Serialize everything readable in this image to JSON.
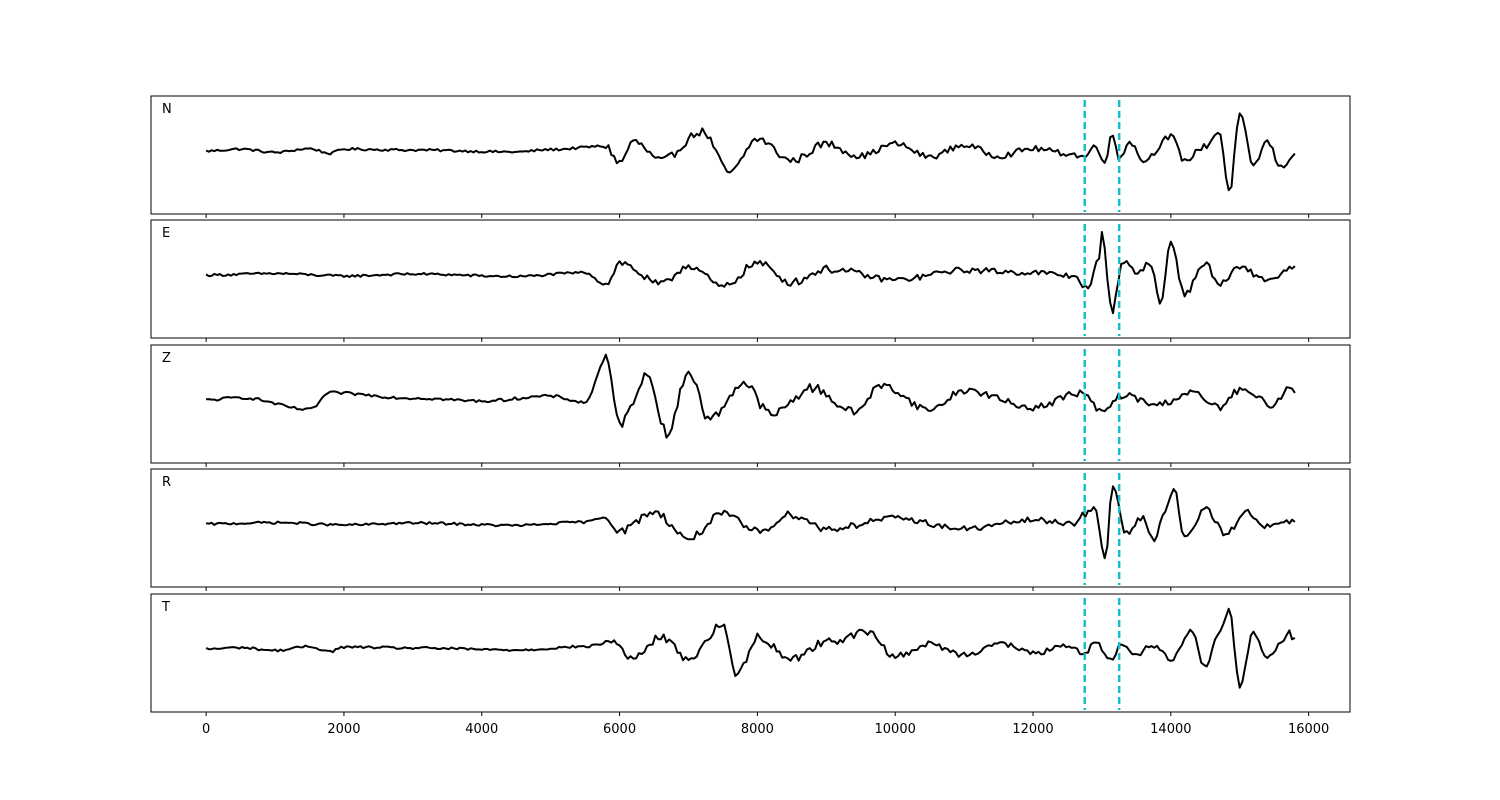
{
  "chart_data": {
    "type": "line",
    "xlim": [
      -800,
      16600
    ],
    "x_ticks": [
      0,
      2000,
      4000,
      6000,
      8000,
      10000,
      12000,
      14000,
      16000
    ],
    "x_tick_labels": [
      "0",
      "2000",
      "4000",
      "6000",
      "8000",
      "10000",
      "12000",
      "14000",
      "16000"
    ],
    "grid": false,
    "sample_step": 40,
    "x_start": 0,
    "x_end": 15800,
    "marker_color": "#17becf",
    "trace_color": "#000000",
    "markers_x": [
      12750,
      13250
    ],
    "series": [
      {
        "name": "N",
        "anchors": [
          [
            0,
            0.0
          ],
          [
            500,
            0.04
          ],
          [
            1000,
            -0.03
          ],
          [
            1500,
            0.05
          ],
          [
            1800,
            -0.05
          ],
          [
            2000,
            0.04
          ],
          [
            3000,
            0.02
          ],
          [
            4500,
            -0.02
          ],
          [
            5000,
            0.03
          ],
          [
            5800,
            0.1
          ],
          [
            6000,
            -0.25
          ],
          [
            6200,
            0.2
          ],
          [
            6600,
            -0.2
          ],
          [
            7200,
            0.4
          ],
          [
            7600,
            -0.45
          ],
          [
            8000,
            0.25
          ],
          [
            8500,
            -0.2
          ],
          [
            9000,
            0.15
          ],
          [
            9500,
            -0.1
          ],
          [
            10000,
            0.15
          ],
          [
            10500,
            -0.12
          ],
          [
            11000,
            0.12
          ],
          [
            11500,
            -0.1
          ],
          [
            12000,
            0.05
          ],
          [
            12500,
            -0.05
          ],
          [
            12750,
            -0.12
          ],
          [
            12900,
            0.1
          ],
          [
            13050,
            -0.2
          ],
          [
            13150,
            0.35
          ],
          [
            13250,
            -0.15
          ],
          [
            13400,
            0.2
          ],
          [
            13600,
            -0.2
          ],
          [
            14000,
            0.3
          ],
          [
            14200,
            -0.2
          ],
          [
            14500,
            0.1
          ],
          [
            14700,
            0.4
          ],
          [
            14850,
            -0.85
          ],
          [
            15000,
            0.75
          ],
          [
            15200,
            -0.3
          ],
          [
            15400,
            0.2
          ],
          [
            15600,
            -0.35
          ],
          [
            15800,
            -0.05
          ]
        ],
        "noise": 0.05
      },
      {
        "name": "E",
        "anchors": [
          [
            0,
            0.0
          ],
          [
            1000,
            0.03
          ],
          [
            2000,
            -0.02
          ],
          [
            3000,
            0.02
          ],
          [
            4500,
            -0.03
          ],
          [
            5500,
            0.05
          ],
          [
            5800,
            -0.2
          ],
          [
            6000,
            0.25
          ],
          [
            6600,
            -0.2
          ],
          [
            7000,
            0.2
          ],
          [
            7500,
            -0.25
          ],
          [
            8000,
            0.25
          ],
          [
            8500,
            -0.15
          ],
          [
            9000,
            0.12
          ],
          [
            10000,
            -0.1
          ],
          [
            11000,
            0.1
          ],
          [
            12000,
            0.05
          ],
          [
            12600,
            -0.02
          ],
          [
            12800,
            -0.3
          ],
          [
            12950,
            0.3
          ],
          [
            13000,
            0.85
          ],
          [
            13150,
            -0.75
          ],
          [
            13300,
            0.3
          ],
          [
            13500,
            0.05
          ],
          [
            13700,
            0.25
          ],
          [
            13850,
            -0.6
          ],
          [
            14000,
            0.7
          ],
          [
            14200,
            -0.4
          ],
          [
            14500,
            0.25
          ],
          [
            14700,
            -0.2
          ],
          [
            15000,
            0.15
          ],
          [
            15400,
            -0.1
          ],
          [
            15800,
            0.15
          ]
        ],
        "noise": 0.05
      },
      {
        "name": "Z",
        "anchors": [
          [
            0,
            0.0
          ],
          [
            500,
            0.05
          ],
          [
            1500,
            -0.2
          ],
          [
            1800,
            0.15
          ],
          [
            3000,
            0.04
          ],
          [
            4000,
            -0.02
          ],
          [
            5000,
            0.08
          ],
          [
            5500,
            -0.05
          ],
          [
            5800,
            0.85
          ],
          [
            6000,
            -0.5
          ],
          [
            6400,
            0.5
          ],
          [
            6700,
            -0.7
          ],
          [
            7000,
            0.6
          ],
          [
            7300,
            -0.4
          ],
          [
            7800,
            0.35
          ],
          [
            8200,
            -0.3
          ],
          [
            8800,
            0.25
          ],
          [
            9400,
            -0.25
          ],
          [
            9800,
            0.3
          ],
          [
            10500,
            -0.2
          ],
          [
            11000,
            0.2
          ],
          [
            12000,
            -0.15
          ],
          [
            12700,
            0.15
          ],
          [
            13000,
            -0.25
          ],
          [
            13300,
            0.1
          ],
          [
            13800,
            -0.1
          ],
          [
            14300,
            0.15
          ],
          [
            14700,
            -0.15
          ],
          [
            15000,
            0.2
          ],
          [
            15500,
            -0.1
          ],
          [
            15700,
            0.25
          ],
          [
            15800,
            0.2
          ]
        ],
        "noise": 0.06
      },
      {
        "name": "R",
        "anchors": [
          [
            0,
            0.0
          ],
          [
            1000,
            0.03
          ],
          [
            2000,
            -0.02
          ],
          [
            3000,
            0.02
          ],
          [
            4500,
            -0.03
          ],
          [
            5500,
            0.04
          ],
          [
            5800,
            0.15
          ],
          [
            6000,
            -0.15
          ],
          [
            6500,
            0.25
          ],
          [
            7000,
            -0.3
          ],
          [
            7500,
            0.2
          ],
          [
            8000,
            -0.15
          ],
          [
            8500,
            0.2
          ],
          [
            9000,
            -0.1
          ],
          [
            10000,
            0.12
          ],
          [
            11000,
            -0.1
          ],
          [
            12000,
            0.08
          ],
          [
            12600,
            0.02
          ],
          [
            12750,
            0.2
          ],
          [
            12900,
            0.3
          ],
          [
            13050,
            -0.75
          ],
          [
            13150,
            0.8
          ],
          [
            13350,
            -0.2
          ],
          [
            13600,
            0.15
          ],
          [
            13750,
            -0.35
          ],
          [
            13900,
            0.25
          ],
          [
            14050,
            0.7
          ],
          [
            14200,
            -0.3
          ],
          [
            14500,
            0.3
          ],
          [
            14800,
            -0.2
          ],
          [
            15100,
            0.25
          ],
          [
            15400,
            -0.05
          ],
          [
            15800,
            0.05
          ]
        ],
        "noise": 0.05
      },
      {
        "name": "T",
        "anchors": [
          [
            0,
            0.0
          ],
          [
            500,
            0.03
          ],
          [
            1000,
            -0.03
          ],
          [
            1500,
            0.05
          ],
          [
            1800,
            -0.05
          ],
          [
            2000,
            0.04
          ],
          [
            3000,
            0.02
          ],
          [
            4500,
            -0.02
          ],
          [
            5500,
            0.05
          ],
          [
            5900,
            0.15
          ],
          [
            6200,
            -0.2
          ],
          [
            6600,
            0.25
          ],
          [
            7000,
            -0.2
          ],
          [
            7500,
            0.5
          ],
          [
            7700,
            -0.55
          ],
          [
            8000,
            0.25
          ],
          [
            8500,
            -0.2
          ],
          [
            9000,
            0.15
          ],
          [
            9600,
            0.35
          ],
          [
            10000,
            -0.15
          ],
          [
            10500,
            0.1
          ],
          [
            11000,
            -0.12
          ],
          [
            11500,
            0.12
          ],
          [
            12000,
            -0.08
          ],
          [
            12500,
            0.05
          ],
          [
            12750,
            -0.1
          ],
          [
            12900,
            0.2
          ],
          [
            13100,
            -0.25
          ],
          [
            13300,
            0.1
          ],
          [
            13500,
            -0.15
          ],
          [
            13700,
            0.1
          ],
          [
            14000,
            -0.2
          ],
          [
            14300,
            0.4
          ],
          [
            14500,
            -0.4
          ],
          [
            14700,
            0.35
          ],
          [
            14850,
            0.8
          ],
          [
            15000,
            -0.75
          ],
          [
            15200,
            0.35
          ],
          [
            15400,
            -0.2
          ],
          [
            15600,
            0.15
          ],
          [
            15700,
            0.35
          ],
          [
            15800,
            0.2
          ]
        ],
        "noise": 0.05
      }
    ]
  }
}
